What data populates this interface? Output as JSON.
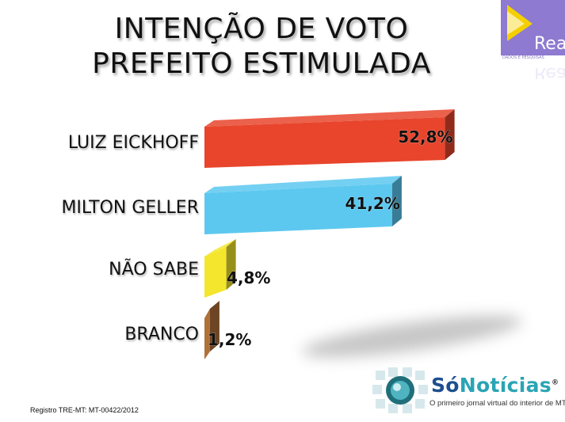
{
  "header": {
    "title_line1": "INTENÇÃO DE VOTO",
    "title_line2": "PREFEITO ESTIMULADA"
  },
  "logos": {
    "real": "Real",
    "real_sub": "DADOS E PESQUISAS",
    "sonoticias_so": "Só",
    "sonoticias_noticias": "Notícias",
    "sonoticias_reg": "®",
    "sonoticias_tagline": "O primeiro jornal virtual do interior de MT"
  },
  "footer": {
    "registro": "Registro TRE-MT: MT-00422/2012"
  },
  "colors": {
    "red": "#e8452c",
    "blue": "#5cc8f0",
    "yellow": "#f4e62c",
    "brown": "#b0703a"
  },
  "chart_data": {
    "type": "bar",
    "orientation": "horizontal",
    "title": "INTENÇÃO DE VOTO PREFEITO ESTIMULADA",
    "categories": [
      "LUIZ EICKHOFF",
      "MILTON GELLER",
      "NÃO SABE",
      "BRANCO"
    ],
    "values": [
      52.8,
      41.2,
      4.8,
      1.2
    ],
    "value_labels": [
      "52,8%",
      "41,2%",
      "4,8%",
      "1,2%"
    ],
    "unit": "%",
    "grid": false,
    "legend": "none"
  }
}
